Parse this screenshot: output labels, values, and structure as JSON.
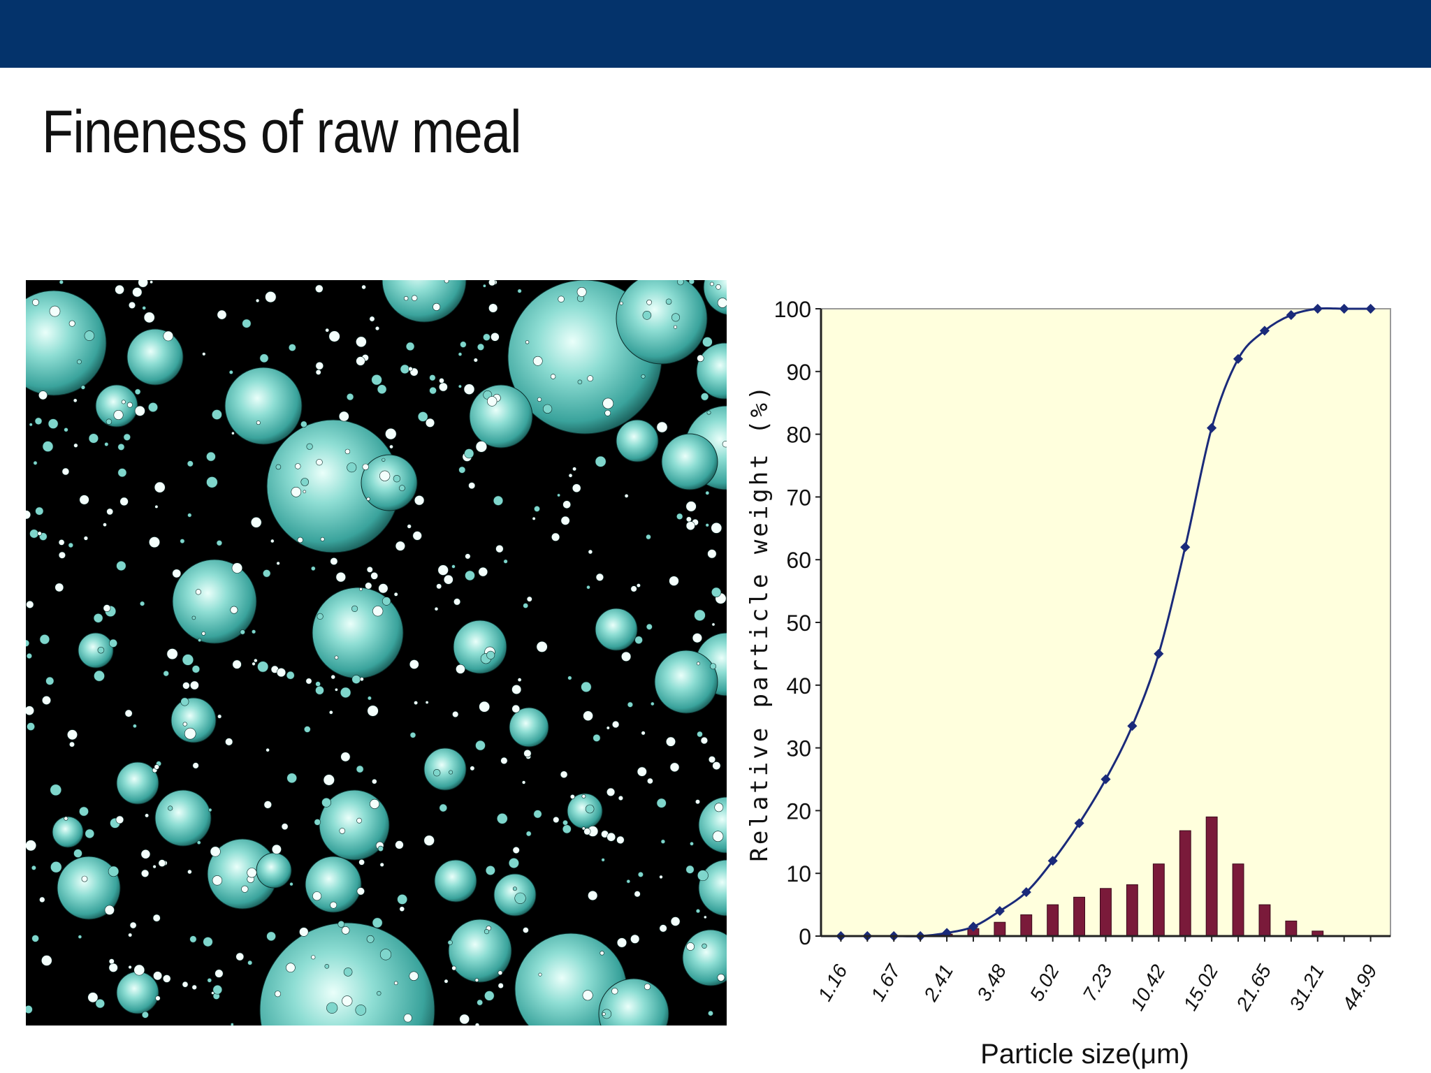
{
  "slide": {
    "title": "Fineness of raw meal",
    "header_bar_color": "#04336b"
  },
  "photo": {
    "description_name": "raw-meal-particles-micrograph",
    "particle_color": "#5fc7bd",
    "background_color": "#000000"
  },
  "chart_data": {
    "type": "bar+line",
    "x_tick_labels": [
      "1.16",
      "1.67",
      "2.41",
      "3.48",
      "5.02",
      "7.23",
      "10.42",
      "15.02",
      "21.65",
      "31.21",
      "44.99"
    ],
    "x_positions": [
      1,
      2,
      3,
      4,
      5,
      6,
      7,
      8,
      9,
      10,
      11,
      12,
      13,
      14,
      15,
      16,
      17,
      18,
      19,
      20,
      21
    ],
    "series": [
      {
        "kind": "line",
        "color": "#1a2a7a",
        "values": [
          0,
          0,
          0,
          0,
          0.5,
          1.5,
          4,
          7,
          12,
          18,
          25,
          33.5,
          45,
          62,
          81,
          92,
          96.5,
          99,
          100,
          100,
          100
        ]
      },
      {
        "kind": "bar",
        "color": "#7a1a3a",
        "values": [
          0,
          0,
          0,
          0,
          0.3,
          1.2,
          2.2,
          3.4,
          5,
          6.2,
          7.6,
          8.2,
          11.5,
          16.8,
          19,
          11.5,
          5,
          2.4,
          0.8,
          0,
          0
        ]
      }
    ],
    "xlabel": "Particle size(μm)",
    "ylabel": "Relative particle weight (%)",
    "ylim": [
      0,
      100
    ],
    "y_ticks": [
      0,
      10,
      20,
      30,
      40,
      50,
      60,
      70,
      80,
      90,
      100
    ],
    "plot_background": "#ffffdd",
    "grid": false
  }
}
